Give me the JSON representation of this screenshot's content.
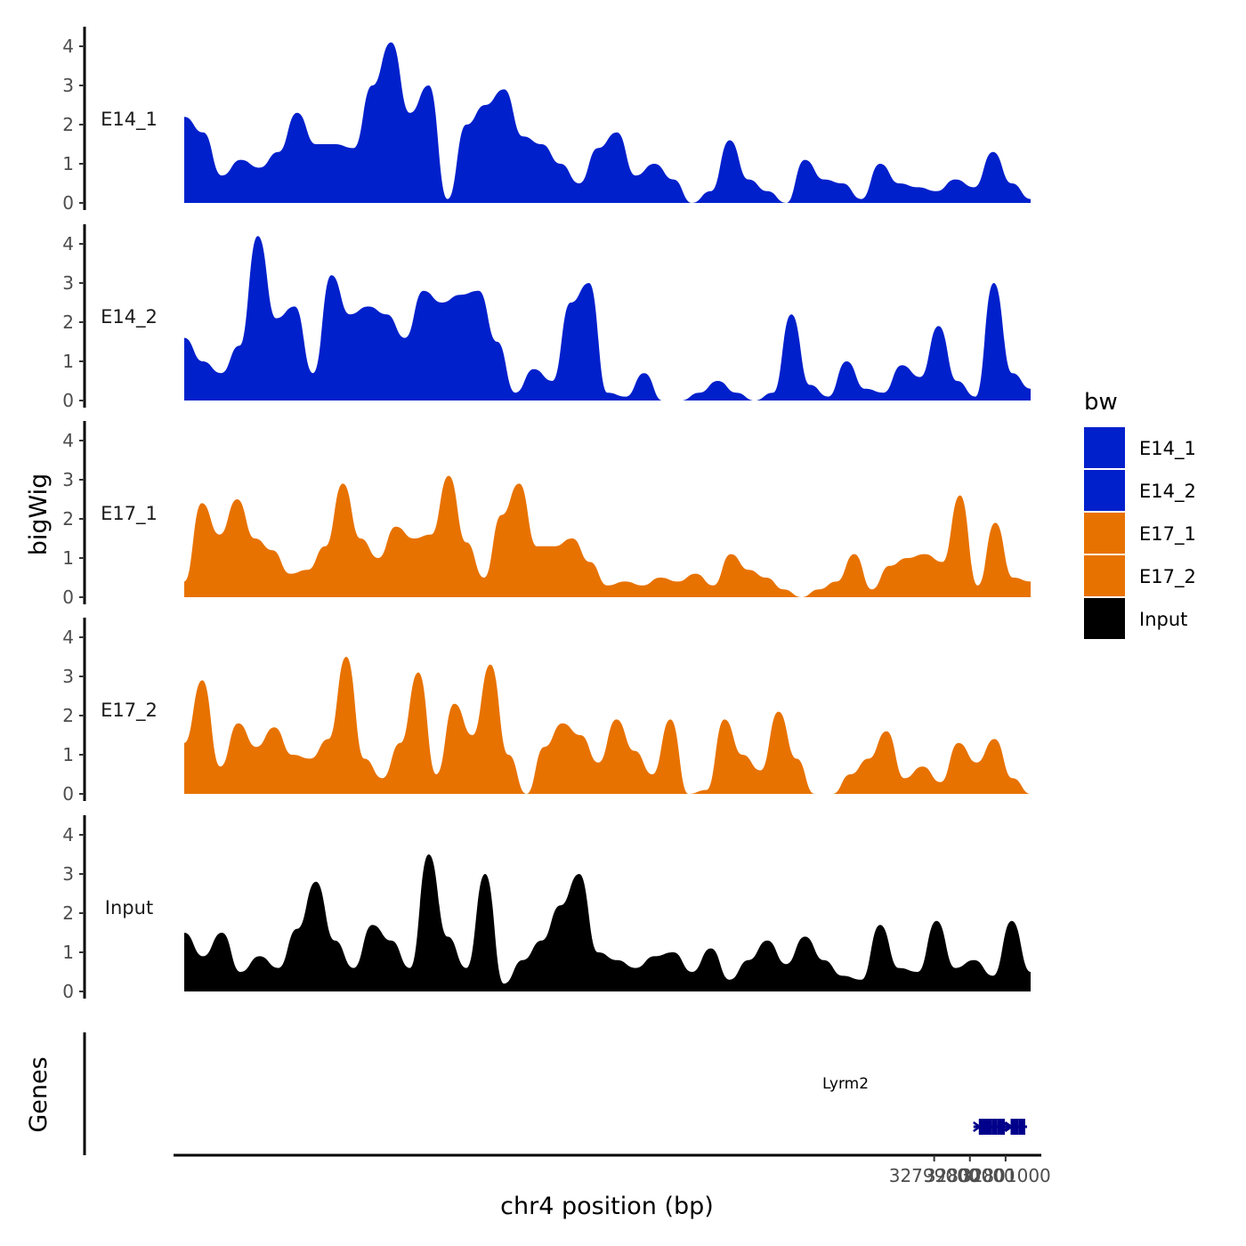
{
  "chart_data": {
    "type": "area",
    "ylabel": "bigWig",
    "genes_label": "Genes",
    "xlabel": "chr4 position (bp)",
    "x_range": [
      32778000,
      32801700
    ],
    "xlim": [
      32777750,
      32801950
    ],
    "x_ticks": [
      32799000,
      32800000,
      32801000
    ],
    "x_tick_labels": [
      "32799000",
      "32800000",
      "32801000"
    ],
    "y_ticks": [
      0,
      1,
      2,
      3,
      4
    ],
    "y_tick_labels": [
      "0",
      "1",
      "2",
      "3",
      "4"
    ],
    "ylim": [
      0,
      4.4
    ],
    "series": [
      {
        "name": "E14_1",
        "color": "#0020CC",
        "values": [
          2.2,
          1.8,
          0.7,
          1.1,
          0.9,
          1.3,
          2.3,
          1.5,
          1.5,
          1.4,
          3.0,
          4.1,
          2.3,
          3.0,
          0.1,
          2.0,
          2.5,
          2.9,
          1.7,
          1.5,
          1.0,
          0.5,
          1.4,
          1.8,
          0.7,
          1.0,
          0.6,
          0.0,
          0.3,
          1.6,
          0.6,
          0.3,
          0.0,
          1.1,
          0.6,
          0.5,
          0.1,
          1.0,
          0.5,
          0.4,
          0.3,
          0.6,
          0.4,
          1.3,
          0.5,
          0.1
        ]
      },
      {
        "name": "E14_2",
        "color": "#0020CC",
        "values": [
          1.6,
          1.0,
          0.7,
          1.4,
          4.2,
          2.1,
          2.4,
          0.7,
          3.2,
          2.2,
          2.4,
          2.2,
          1.6,
          2.8,
          2.5,
          2.7,
          2.8,
          1.5,
          0.2,
          0.8,
          0.5,
          2.5,
          3.0,
          0.2,
          0.1,
          0.7,
          0.0,
          0.0,
          0.2,
          0.5,
          0.2,
          0.0,
          0.2,
          2.2,
          0.4,
          0.1,
          1.0,
          0.3,
          0.2,
          0.9,
          0.6,
          1.9,
          0.5,
          0.1,
          3.0,
          0.7,
          0.3
        ]
      },
      {
        "name": "E17_1",
        "color": "#E87200",
        "values": [
          0.4,
          2.4,
          1.6,
          2.5,
          1.5,
          1.2,
          0.6,
          0.7,
          1.3,
          2.9,
          1.5,
          1.0,
          1.8,
          1.5,
          1.6,
          3.1,
          1.4,
          0.5,
          2.1,
          2.9,
          1.3,
          1.3,
          1.5,
          0.9,
          0.3,
          0.4,
          0.3,
          0.5,
          0.4,
          0.6,
          0.3,
          1.1,
          0.7,
          0.5,
          0.2,
          0.0,
          0.2,
          0.4,
          1.1,
          0.2,
          0.8,
          1.0,
          1.1,
          0.9,
          2.6,
          0.3,
          1.9,
          0.5,
          0.4
        ]
      },
      {
        "name": "E17_2",
        "color": "#E87200",
        "values": [
          1.3,
          2.9,
          0.7,
          1.8,
          1.2,
          1.7,
          1.0,
          0.9,
          1.4,
          3.5,
          0.9,
          0.4,
          1.3,
          3.1,
          0.5,
          2.3,
          1.5,
          3.3,
          1.0,
          0.0,
          1.2,
          1.8,
          1.5,
          0.8,
          1.9,
          1.1,
          0.5,
          1.9,
          0.0,
          0.1,
          1.9,
          1.0,
          0.6,
          2.1,
          0.9,
          0.0,
          0.0,
          0.5,
          0.9,
          1.6,
          0.4,
          0.7,
          0.3,
          1.3,
          0.8,
          1.4,
          0.4,
          0.0
        ]
      },
      {
        "name": "Input",
        "color": "#000000",
        "values": [
          1.5,
          0.9,
          1.5,
          0.5,
          0.9,
          0.6,
          1.6,
          2.8,
          1.3,
          0.6,
          1.7,
          1.3,
          0.6,
          3.5,
          1.4,
          0.6,
          3.0,
          0.2,
          0.8,
          1.3,
          2.2,
          3.0,
          1.0,
          0.8,
          0.6,
          0.9,
          1.0,
          0.5,
          1.1,
          0.3,
          0.8,
          1.3,
          0.7,
          1.4,
          0.8,
          0.4,
          0.3,
          1.7,
          0.6,
          0.5,
          1.8,
          0.6,
          0.8,
          0.4,
          1.8,
          0.5
        ]
      }
    ],
    "legend": {
      "title": "bw",
      "position": "right",
      "entries": [
        {
          "label": "E14_1",
          "color": "#0020CC"
        },
        {
          "label": "E14_2",
          "color": "#0020CC"
        },
        {
          "label": "E17_1",
          "color": "#E87200"
        },
        {
          "label": "E17_2",
          "color": "#E87200"
        },
        {
          "label": "Input",
          "color": "#000000"
        }
      ]
    },
    "gene": {
      "name": "Lyrm2",
      "color": "#00008B",
      "start": 32800250,
      "end": 32801550,
      "exons": [
        [
          32800250,
          32800330
        ],
        [
          32800330,
          32800620
        ],
        [
          32800620,
          32800760
        ],
        [
          32800760,
          32800980
        ],
        [
          32801140,
          32801370
        ],
        [
          32801370,
          32801550
        ]
      ],
      "strand": "+"
    }
  }
}
